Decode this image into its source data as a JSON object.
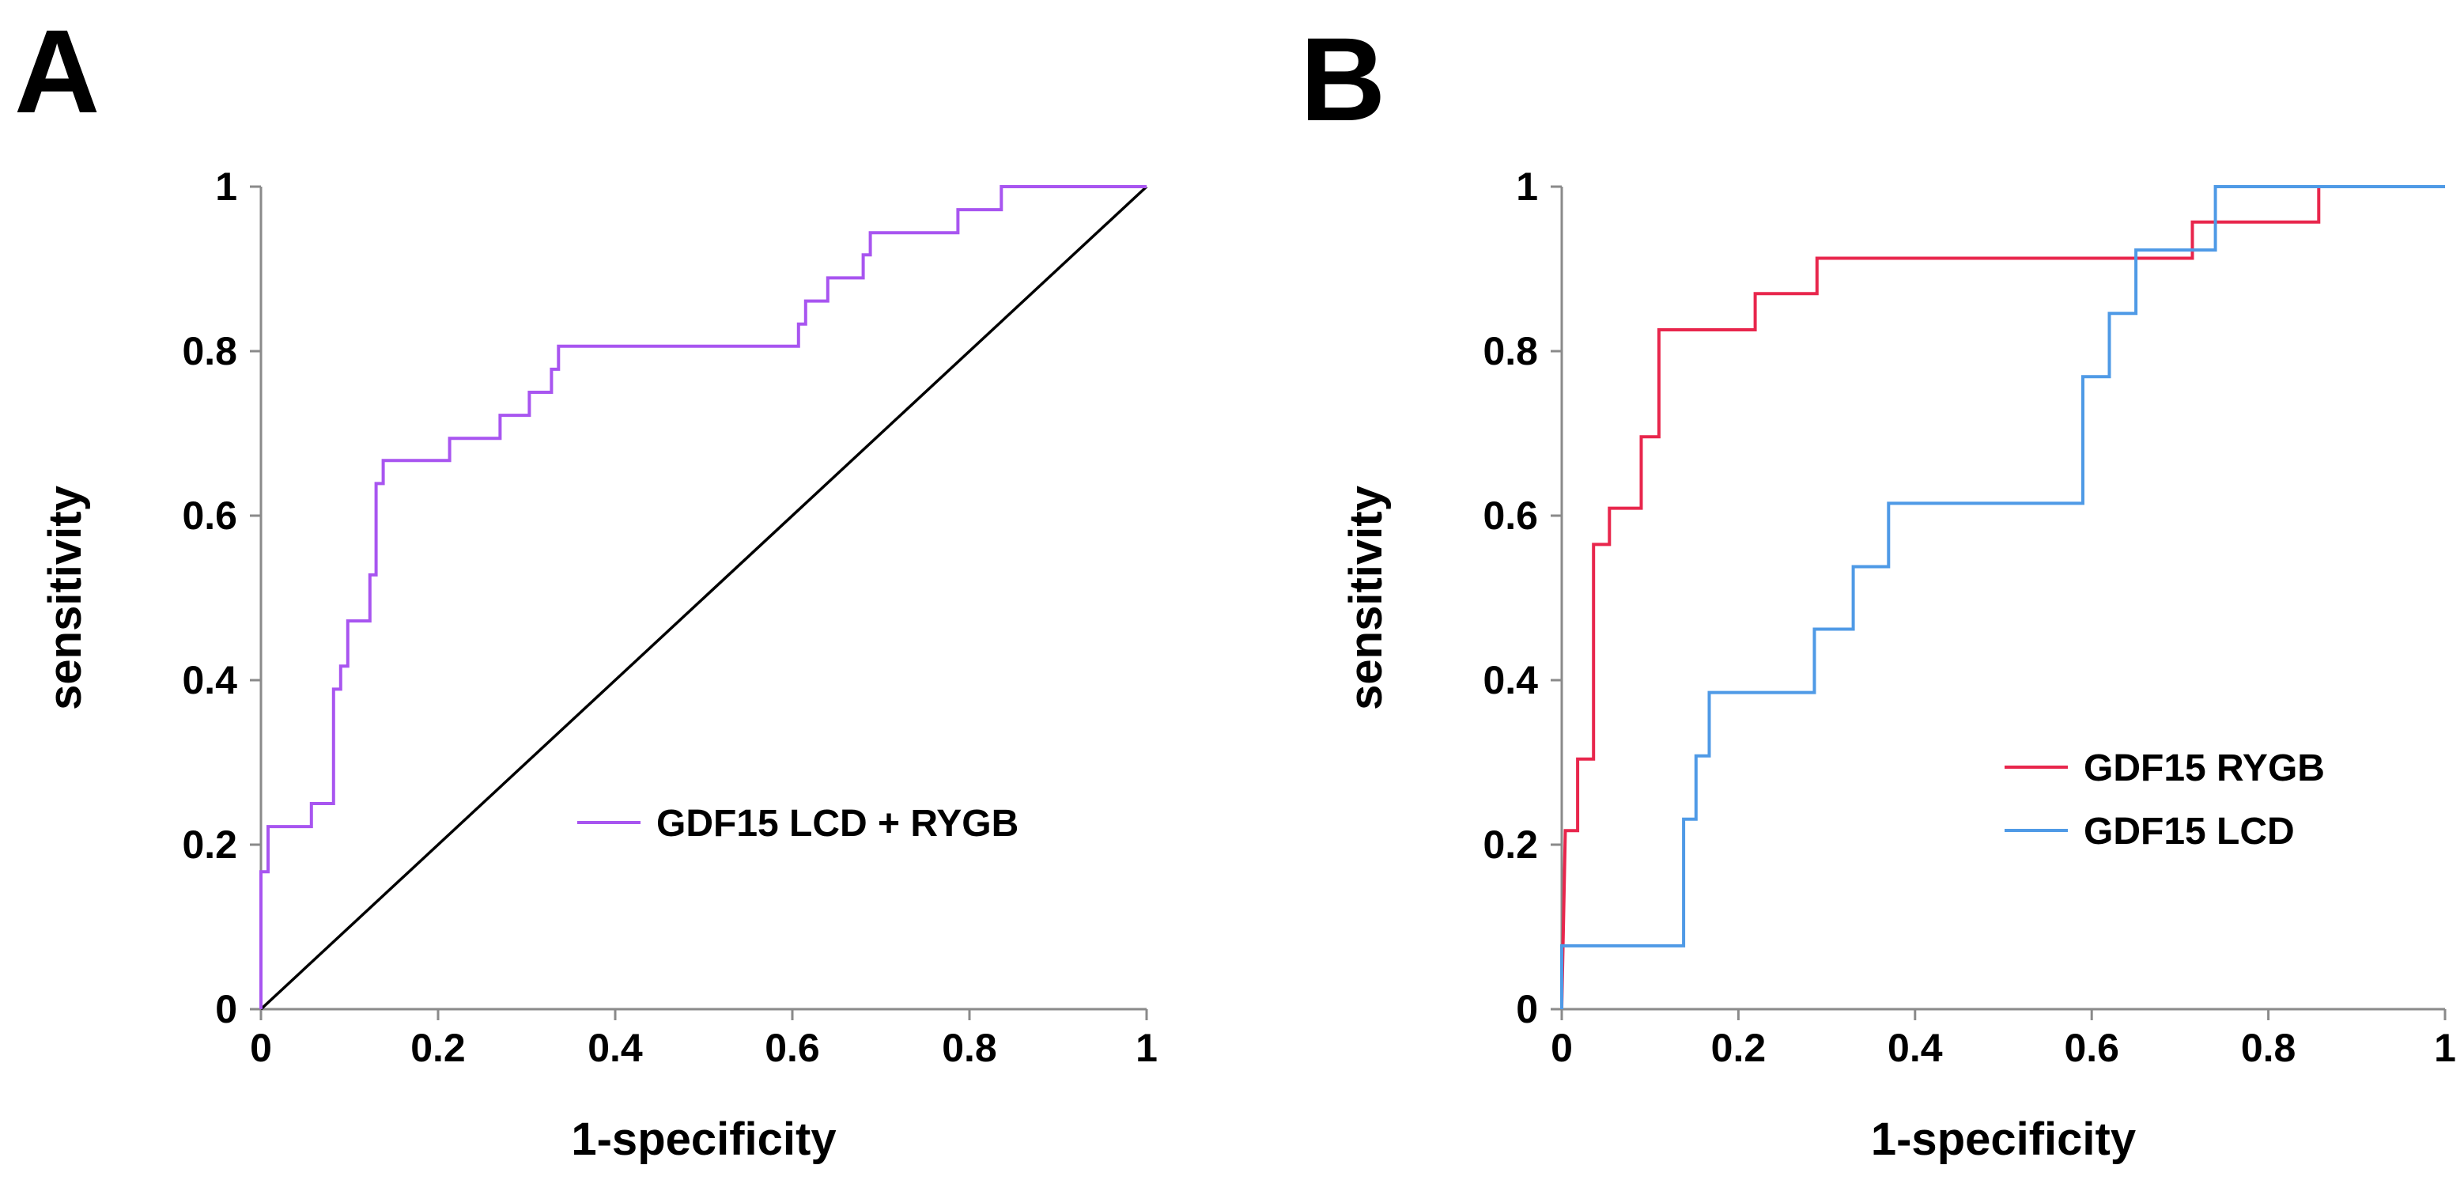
{
  "chart_data": [
    {
      "panel": "A",
      "type": "line",
      "subtype": "roc-step",
      "xlabel": "1-specificity",
      "ylabel": "sensitivity",
      "xlim": [
        0,
        1
      ],
      "ylim": [
        0,
        1
      ],
      "xticks": [
        "0",
        "0.2",
        "0.4",
        "0.6",
        "0.8",
        "1"
      ],
      "yticks": [
        "0",
        "0.2",
        "0.4",
        "0.6",
        "0.8",
        "1"
      ],
      "legend_position": "center-right",
      "reference_line": {
        "name": "chance diagonal",
        "color": "#000000",
        "points": [
          [
            0,
            0
          ],
          [
            1,
            1
          ]
        ]
      },
      "series": [
        {
          "name": "GDF15 LCD + RYGB",
          "color": "#a855f0",
          "points": [
            [
              0,
              0
            ],
            [
              0,
              0.167
            ],
            [
              0.008,
              0.167
            ],
            [
              0.008,
              0.222
            ],
            [
              0.057,
              0.222
            ],
            [
              0.057,
              0.25
            ],
            [
              0.082,
              0.25
            ],
            [
              0.082,
              0.389
            ],
            [
              0.09,
              0.389
            ],
            [
              0.09,
              0.417
            ],
            [
              0.098,
              0.417
            ],
            [
              0.098,
              0.472
            ],
            [
              0.123,
              0.472
            ],
            [
              0.123,
              0.528
            ],
            [
              0.13,
              0.528
            ],
            [
              0.13,
              0.639
            ],
            [
              0.138,
              0.639
            ],
            [
              0.138,
              0.667
            ],
            [
              0.213,
              0.667
            ],
            [
              0.213,
              0.694
            ],
            [
              0.27,
              0.694
            ],
            [
              0.27,
              0.722
            ],
            [
              0.303,
              0.722
            ],
            [
              0.303,
              0.75
            ],
            [
              0.328,
              0.75
            ],
            [
              0.328,
              0.778
            ],
            [
              0.336,
              0.778
            ],
            [
              0.336,
              0.806
            ],
            [
              0.607,
              0.806
            ],
            [
              0.607,
              0.833
            ],
            [
              0.615,
              0.833
            ],
            [
              0.615,
              0.861
            ],
            [
              0.64,
              0.861
            ],
            [
              0.64,
              0.889
            ],
            [
              0.68,
              0.889
            ],
            [
              0.68,
              0.917
            ],
            [
              0.688,
              0.917
            ],
            [
              0.688,
              0.944
            ],
            [
              0.787,
              0.944
            ],
            [
              0.787,
              0.972
            ],
            [
              0.836,
              0.972
            ],
            [
              0.836,
              1
            ],
            [
              1,
              1
            ]
          ]
        }
      ]
    },
    {
      "panel": "B",
      "type": "line",
      "subtype": "roc-step",
      "xlabel": "1-specificity",
      "ylabel": "sensitivity",
      "xlim": [
        0,
        1
      ],
      "ylim": [
        0,
        1
      ],
      "xticks": [
        "0",
        "0.2",
        "0.4",
        "0.6",
        "0.8",
        "1"
      ],
      "yticks": [
        "0",
        "0.2",
        "0.4",
        "0.6",
        "0.8",
        "1"
      ],
      "legend_position": "center-right",
      "series": [
        {
          "name": "GDF15 RYGB",
          "color": "#e8264c",
          "points": [
            [
              0,
              0
            ],
            [
              0.004,
              0.217
            ],
            [
              0.018,
              0.217
            ],
            [
              0.018,
              0.304
            ],
            [
              0.036,
              0.304
            ],
            [
              0.036,
              0.565
            ],
            [
              0.054,
              0.565
            ],
            [
              0.054,
              0.609
            ],
            [
              0.09,
              0.609
            ],
            [
              0.09,
              0.696
            ],
            [
              0.11,
              0.696
            ],
            [
              0.11,
              0.826
            ],
            [
              0.219,
              0.826
            ],
            [
              0.219,
              0.87
            ],
            [
              0.289,
              0.87
            ],
            [
              0.289,
              0.913
            ],
            [
              0.714,
              0.913
            ],
            [
              0.714,
              0.957
            ],
            [
              0.857,
              0.957
            ],
            [
              0.857,
              1
            ],
            [
              1,
              1
            ]
          ]
        },
        {
          "name": "GDF15 LCD",
          "color": "#4f9ae6",
          "points": [
            [
              0,
              0
            ],
            [
              0,
              0.077
            ],
            [
              0.138,
              0.077
            ],
            [
              0.138,
              0.231
            ],
            [
              0.152,
              0.231
            ],
            [
              0.152,
              0.308
            ],
            [
              0.167,
              0.308
            ],
            [
              0.167,
              0.385
            ],
            [
              0.286,
              0.385
            ],
            [
              0.286,
              0.462
            ],
            [
              0.33,
              0.462
            ],
            [
              0.33,
              0.538
            ],
            [
              0.37,
              0.538
            ],
            [
              0.37,
              0.615
            ],
            [
              0.59,
              0.615
            ],
            [
              0.59,
              0.769
            ],
            [
              0.62,
              0.769
            ],
            [
              0.62,
              0.846
            ],
            [
              0.65,
              0.846
            ],
            [
              0.65,
              0.923
            ],
            [
              0.74,
              0.923
            ],
            [
              0.74,
              1
            ],
            [
              1,
              1
            ]
          ]
        }
      ]
    }
  ]
}
